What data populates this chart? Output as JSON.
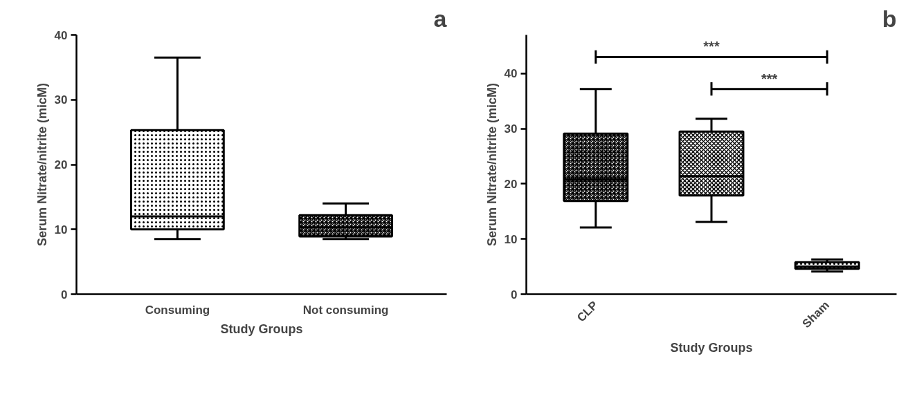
{
  "chart_data": [
    {
      "type": "box",
      "categories": [
        "Consuming",
        "Not consuming"
      ],
      "xlabel": "Study Groups",
      "ylabel": "Serum Nitrate/nitrite (micM)",
      "ylim": [
        0,
        40
      ],
      "yticks": [
        0,
        10,
        20,
        30,
        40
      ],
      "grid": false,
      "annotations": [
        "a"
      ],
      "boxes": [
        {
          "low": 8.5,
          "q1": 10,
          "median": 12,
          "q3": 25.3,
          "high": 36.5
        },
        {
          "low": 8.5,
          "q1": 8.9,
          "median": 10.3,
          "q3": 12.2,
          "high": 14
        }
      ]
    },
    {
      "type": "box",
      "categories": [
        "CLP",
        null,
        "Sham"
      ],
      "xlabel": "Study Groups",
      "ylabel": "Serum Nitrate/nitrite (micM)",
      "ylim": [
        0,
        47
      ],
      "yticks": [
        0,
        10,
        20,
        30,
        40
      ],
      "grid": false,
      "annotations": [
        "***",
        "***",
        "b"
      ],
      "boxes": [
        {
          "low": 12.1,
          "q1": 16.9,
          "median": 20.8,
          "q3": 29.1,
          "high": 37.2
        },
        {
          "low": 13.1,
          "q1": 17.9,
          "median": 21.4,
          "q3": 29.5,
          "high": 31.8
        },
        {
          "low": 4.1,
          "q1": 4.6,
          "median": 5,
          "q3": 5.8,
          "high": 6.3
        }
      ]
    }
  ]
}
